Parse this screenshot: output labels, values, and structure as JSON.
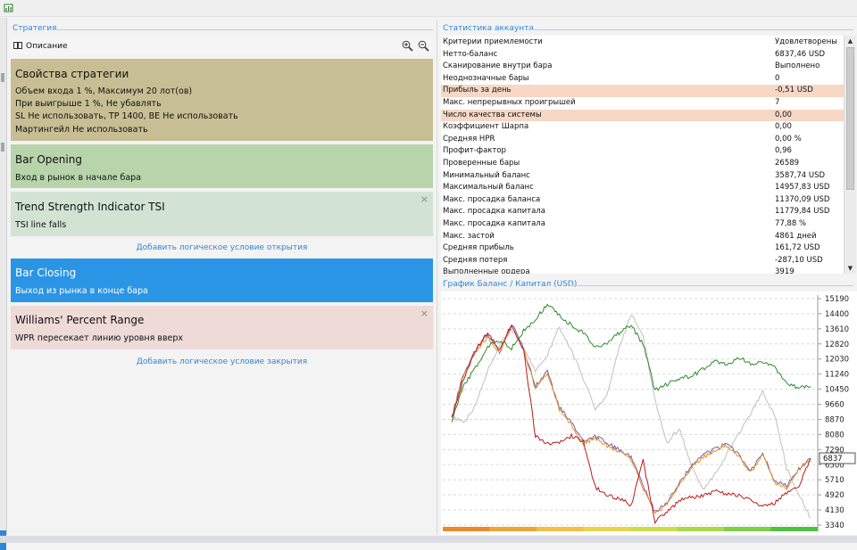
{
  "left_section": {
    "title": "Стратегия",
    "toolbar": {
      "description_label": "Описание",
      "zoom_in": "zoom-in-icon",
      "zoom_out": "zoom-out-icon"
    },
    "properties": {
      "title": "Свойства стратегии",
      "lines": [
        "Объем входа 1 %, Максимум 20 лот(ов)",
        "При выигрыше 1 %, Не убавлять",
        "SL Не использовать,  TP 1400,  BE Не использовать",
        "Мартингейл Не использовать"
      ]
    },
    "opening": {
      "title": "Bar Opening",
      "line": "Вход в рынок в начале бара"
    },
    "open_condition": {
      "title": "Trend Strength Indicator TSI",
      "line": "TSI line falls",
      "close": "×"
    },
    "add_open": "Добавить логическое условие открытия",
    "closing": {
      "title": "Bar Closing",
      "line": "Выход из рынка в конце бара"
    },
    "close_condition": {
      "title": "Williams' Percent Range",
      "line": "WPR пересекает линию уровня вверх",
      "close": "×"
    },
    "add_close": "Добавить логическое условие закрытия"
  },
  "stats_section": {
    "title": "Статистика аккаунта",
    "rows": [
      {
        "label": "Критерии приемлемости",
        "value": "Удовлетворены",
        "highlight": false
      },
      {
        "label": "Нетто-баланс",
        "value": "6837,46 USD",
        "highlight": false
      },
      {
        "label": "Сканирование внутри бара",
        "value": "Выполнено",
        "highlight": false
      },
      {
        "label": "Неоднозначные бары",
        "value": "0",
        "highlight": false
      },
      {
        "label": "Прибыль за день",
        "value": "-0,51 USD",
        "highlight": true
      },
      {
        "label": "Макс. непрерывных проигрышей",
        "value": "7",
        "highlight": false
      },
      {
        "label": "Число качества системы",
        "value": "0,00",
        "highlight": true
      },
      {
        "label": "Коэффициент Шарпа",
        "value": "0,00",
        "highlight": false
      },
      {
        "label": "Средняя HPR",
        "value": "0,00 %",
        "highlight": false
      },
      {
        "label": "Профит-фактор",
        "value": "0,96",
        "highlight": false
      },
      {
        "label": "Проверенные бары",
        "value": "26589",
        "highlight": false
      },
      {
        "label": "Минимальный баланс",
        "value": "3587,74 USD",
        "highlight": false
      },
      {
        "label": "Максимальный баланс",
        "value": "14957,83 USD",
        "highlight": false
      },
      {
        "label": "Макс. просадка баланса",
        "value": "11370,09 USD",
        "highlight": false
      },
      {
        "label": "Макс. просадка капитала",
        "value": "11779,84 USD",
        "highlight": false
      },
      {
        "label": "Макс. просадка капитала",
        "value": "77,88 %",
        "highlight": false
      },
      {
        "label": "Макс. застой",
        "value": "4861 дней",
        "highlight": false
      },
      {
        "label": "Средняя прибыль",
        "value": "161,72 USD",
        "highlight": false
      },
      {
        "label": "Средняя потеря",
        "value": "-287,10 USD",
        "highlight": false
      },
      {
        "label": "Выполненные ордера",
        "value": "3919",
        "highlight": false
      }
    ]
  },
  "chart_section": {
    "title": "График Баланс / Капитал (USD)"
  },
  "chart_data": {
    "type": "line",
    "y_ticks": [
      15190,
      14400,
      13610,
      12820,
      12030,
      11240,
      10450,
      9660,
      8870,
      8080,
      7290,
      6500,
      5710,
      4920,
      4130,
      3340
    ],
    "ylim": [
      3340,
      15190
    ],
    "current_value_label": "6837",
    "series": [
      {
        "color": "#c0c0c0",
        "values": [
          9000,
          8700,
          9600,
          11400,
          12800,
          13600,
          12700,
          11400,
          12200,
          13700,
          12500,
          11000,
          9400,
          10200,
          12600,
          14400,
          13300,
          9900,
          7600,
          8400,
          6600,
          5200,
          6000,
          7100,
          8100,
          9200,
          10300,
          9100,
          6300,
          5000,
          3700
        ]
      },
      {
        "color": "#7a5ea8",
        "values": [
          9000,
          11300,
          12500,
          13300,
          12400,
          13900,
          12600,
          10600,
          11400,
          9500,
          8700,
          7700,
          8000,
          7600,
          7300,
          6900,
          5400,
          4000,
          4500,
          5500,
          6400,
          7000,
          7300,
          7600,
          7000,
          6200,
          7100,
          5600,
          5400,
          6300,
          6800
        ]
      },
      {
        "color": "#e0922a",
        "values": [
          8900,
          11200,
          12400,
          13200,
          12300,
          13800,
          12500,
          10500,
          11300,
          9400,
          8600,
          7600,
          7900,
          7500,
          7200,
          6800,
          5300,
          3900,
          4400,
          5400,
          6300,
          6900,
          7200,
          7500,
          6900,
          6100,
          7000,
          5500,
          5300,
          6200,
          6700
        ]
      },
      {
        "color": "#2c8c2c",
        "values": [
          8800,
          10600,
          11600,
          12700,
          13000,
          12600,
          13500,
          14100,
          14900,
          14300,
          13800,
          13400,
          12600,
          12900,
          13400,
          13800,
          12800,
          10400,
          10700,
          11000,
          11100,
          11500,
          11900,
          11700,
          12100,
          11800,
          11900,
          11600,
          10800,
          10500,
          10600
        ]
      },
      {
        "color": "#c01818",
        "values": [
          8900,
          11000,
          12500,
          13400,
          12500,
          13800,
          12500,
          8000,
          7600,
          7700,
          8000,
          7700,
          5300,
          4900,
          4700,
          4400,
          6700,
          3500,
          4000,
          4600,
          4800,
          4900,
          5100,
          5000,
          4900,
          4700,
          4300,
          4500,
          5000,
          5300,
          6837
        ]
      }
    ]
  }
}
